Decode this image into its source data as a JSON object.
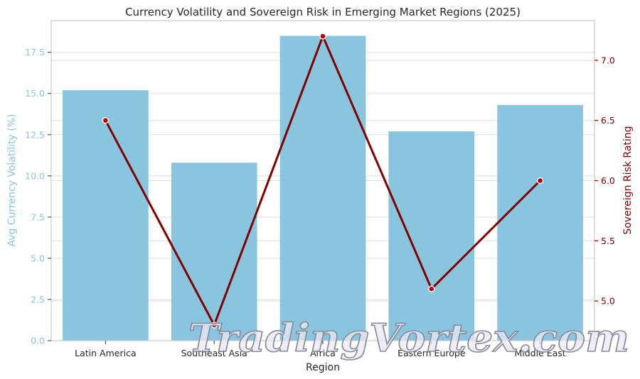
{
  "chart_data": {
    "type": "bar",
    "title": "Currency Volatility and Sovereign Risk in Emerging Market Regions (2025)",
    "xlabel": "Region",
    "categories": [
      "Latin America",
      "Southeast Asia",
      "Africa",
      "Eastern Europe",
      "Middle East"
    ],
    "series": [
      {
        "type": "bar",
        "axis": "left",
        "color": "#89c5de",
        "values": [
          15.2,
          10.8,
          18.5,
          12.7,
          14.3
        ]
      },
      {
        "type": "line",
        "axis": "right",
        "color": "#800000",
        "marker_color": "#b30000",
        "values": [
          6.5,
          4.8,
          7.2,
          5.1,
          6.0
        ]
      }
    ],
    "y_left": {
      "label": "Avg Currency Volatility (%)",
      "color": "#89c5de",
      "range": [
        0,
        19.425
      ],
      "ticks": [
        "0.0",
        "2.5",
        "5.0",
        "7.5",
        "10.0",
        "12.5",
        "15.0",
        "17.5"
      ]
    },
    "y_right": {
      "label": "Sovereign Risk Rating",
      "color": "#800000",
      "range": [
        4.67,
        7.33
      ],
      "ticks": [
        "5.0",
        "5.5",
        "6.0",
        "6.5",
        "7.0"
      ]
    },
    "grid": true,
    "watermark": "TradingVortex.com"
  }
}
